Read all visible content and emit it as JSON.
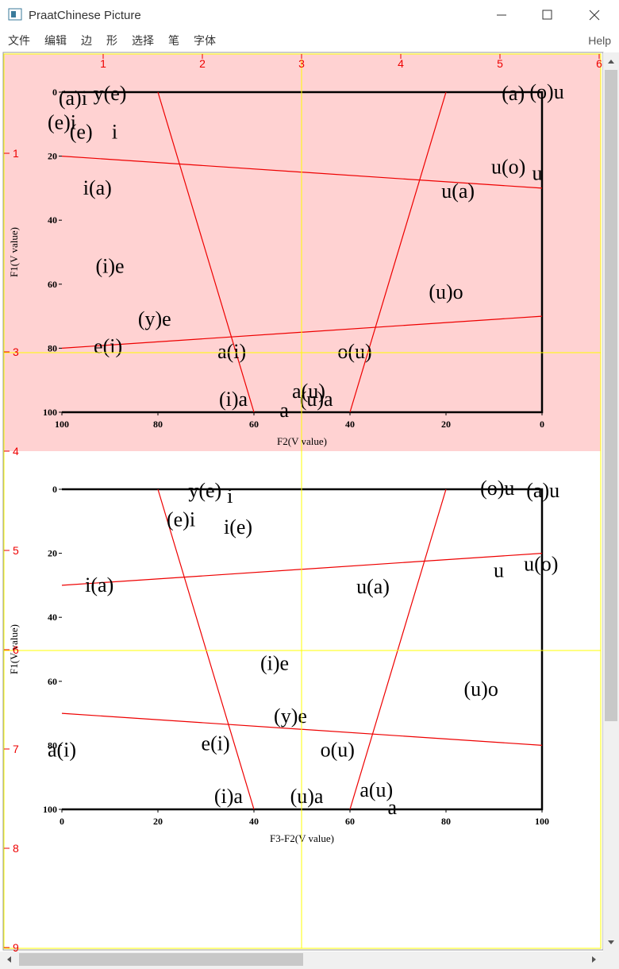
{
  "window": {
    "title": "PraatChinese Picture"
  },
  "menu": [
    "文件",
    "编辑",
    "边",
    "形",
    "选择",
    "笔",
    "字体"
  ],
  "help": "Help",
  "ruler": {
    "x_ticks": [
      1,
      2,
      3,
      4,
      5,
      6
    ],
    "y_ticks": [
      1,
      3,
      4,
      5,
      6,
      7,
      8,
      9
    ]
  },
  "plots": [
    {
      "x_label": "F2(V value)",
      "y_label": "F1(V value)",
      "xlim": [
        100,
        0
      ],
      "ylim": [
        0,
        100
      ],
      "xticks": [
        100,
        80,
        60,
        40,
        20,
        0
      ],
      "yticks": [
        0,
        20,
        40,
        60,
        80,
        100
      ],
      "points": [
        {
          "label": "(a)i",
          "x": 97.7,
          "y": 2.5
        },
        {
          "label": "y(e)",
          "x": 90,
          "y": 1
        },
        {
          "label": "(e)i",
          "x": 100,
          "y": 10
        },
        {
          "label": "(e)",
          "x": 96,
          "y": 13
        },
        {
          "label": "i",
          "x": 89,
          "y": 13
        },
        {
          "label": "(a)",
          "x": 6,
          "y": 1
        },
        {
          "label": "(o)u",
          "x": -1,
          "y": 0.5
        },
        {
          "label": "u(o)",
          "x": 7,
          "y": 24
        },
        {
          "label": "u",
          "x": 1,
          "y": 26
        },
        {
          "label": "i(a)",
          "x": 92.6,
          "y": 30.5
        },
        {
          "label": "u(a)",
          "x": 17.5,
          "y": 31.5
        },
        {
          "label": "(i)e",
          "x": 90,
          "y": 55
        },
        {
          "label": "(u)o",
          "x": 20,
          "y": 63
        },
        {
          "label": "(y)e",
          "x": 80.7,
          "y": 71.5
        },
        {
          "label": "e(i)",
          "x": 90.4,
          "y": 80
        },
        {
          "label": "a(i)",
          "x": 64.6,
          "y": 81.6
        },
        {
          "label": "o(u)",
          "x": 39,
          "y": 81.6
        },
        {
          "label": "(i)a",
          "x": 64.3,
          "y": 96.5
        },
        {
          "label": "a(u)",
          "x": 48.6,
          "y": 94
        },
        {
          "label": "(u)a",
          "x": 47,
          "y": 96.5
        },
        {
          "label": "a",
          "x": 53.7,
          "y": 100
        }
      ],
      "lines": [
        {
          "x": [
            80,
            60
          ],
          "y": [
            0,
            100
          ]
        },
        {
          "x": [
            20,
            40
          ],
          "y": [
            0,
            100
          ]
        },
        {
          "x": [
            100,
            0
          ],
          "y": [
            20,
            30
          ]
        },
        {
          "x": [
            100,
            0
          ],
          "y": [
            80,
            70
          ]
        }
      ]
    },
    {
      "x_label": "F3-F2(V value)",
      "y_label": "F1(V value)",
      "xlim": [
        0,
        100
      ],
      "ylim": [
        0,
        100
      ],
      "xticks": [
        0,
        20,
        40,
        60,
        80,
        100
      ],
      "yticks": [
        0,
        20,
        40,
        60,
        80,
        100
      ],
      "points": [
        {
          "label": "y(e)",
          "x": 29.8,
          "y": 1
        },
        {
          "label": "i",
          "x": 35,
          "y": 2.7
        },
        {
          "label": "(o)u",
          "x": 90.7,
          "y": 0.2
        },
        {
          "label": "(a)u",
          "x": 100.2,
          "y": 1
        },
        {
          "label": "(e)i",
          "x": 24.8,
          "y": 10
        },
        {
          "label": "i(e)",
          "x": 36.7,
          "y": 12.4
        },
        {
          "label": "u",
          "x": 91,
          "y": 26
        },
        {
          "label": "u(o)",
          "x": 99.8,
          "y": 24
        },
        {
          "label": "i(a)",
          "x": 7.8,
          "y": 30.5
        },
        {
          "label": "u(a)",
          "x": 64.8,
          "y": 31
        },
        {
          "label": "(i)e",
          "x": 44.3,
          "y": 55
        },
        {
          "label": "(u)o",
          "x": 87.3,
          "y": 63
        },
        {
          "label": "(y)e",
          "x": 47.6,
          "y": 71.5
        },
        {
          "label": "e(i)",
          "x": 32,
          "y": 80
        },
        {
          "label": "a(i)",
          "x": 0,
          "y": 82
        },
        {
          "label": "o(u)",
          "x": 57.4,
          "y": 82
        },
        {
          "label": "(i)a",
          "x": 34.7,
          "y": 96.5
        },
        {
          "label": "(u)a",
          "x": 51,
          "y": 96.5
        },
        {
          "label": "a(u)",
          "x": 65.5,
          "y": 94.5
        },
        {
          "label": "a",
          "x": 68.8,
          "y": 100
        }
      ],
      "lines": [
        {
          "x": [
            20,
            40
          ],
          "y": [
            0,
            100
          ]
        },
        {
          "x": [
            80,
            60
          ],
          "y": [
            0,
            100
          ]
        },
        {
          "x": [
            0,
            100
          ],
          "y": [
            30,
            20
          ]
        },
        {
          "x": [
            0,
            100
          ],
          "y": [
            70,
            80
          ]
        }
      ]
    }
  ]
}
